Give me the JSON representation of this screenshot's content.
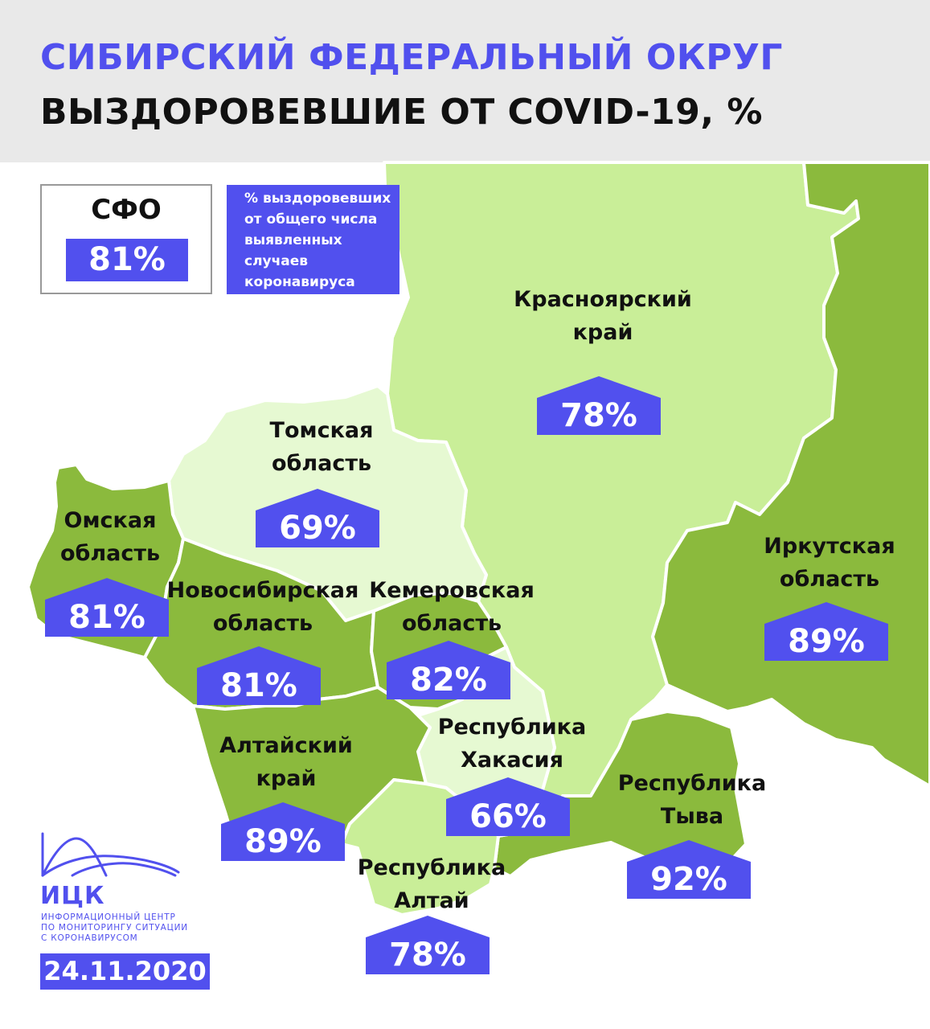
{
  "header": {
    "title": "СИБИРСКИЙ ФЕДЕРАЛЬНЫЙ ОКРУГ",
    "subtitle": "ВЫЗДОРОВЕВШИЕ ОТ COVID-19, %"
  },
  "total": {
    "label": "СФО",
    "value": "81%"
  },
  "legend": {
    "lines": [
      "% выздоровевших",
      "от общего числа",
      "выявленных",
      "случаев",
      "коронавируса"
    ]
  },
  "regions": [
    {
      "name_lines": [
        "Красноярский",
        "край"
      ],
      "value": "78%",
      "recovered_pct": 78
    },
    {
      "name_lines": [
        "Томская",
        "область"
      ],
      "value": "69%",
      "recovered_pct": 69
    },
    {
      "name_lines": [
        "Омская",
        "область"
      ],
      "value": "81%",
      "recovered_pct": 81
    },
    {
      "name_lines": [
        "Новосибирская",
        "область"
      ],
      "value": "81%",
      "recovered_pct": 81
    },
    {
      "name_lines": [
        "Кемеровская",
        "область"
      ],
      "value": "82%",
      "recovered_pct": 82
    },
    {
      "name_lines": [
        "Иркутская",
        "область"
      ],
      "value": "89%",
      "recovered_pct": 89
    },
    {
      "name_lines": [
        "Республика",
        "Хакасия"
      ],
      "value": "66%",
      "recovered_pct": 66
    },
    {
      "name_lines": [
        "Алтайский",
        "край"
      ],
      "value": "89%",
      "recovered_pct": 89
    },
    {
      "name_lines": [
        "Республика",
        "Тыва"
      ],
      "value": "92%",
      "recovered_pct": 92
    },
    {
      "name_lines": [
        "Республика",
        "Алтай"
      ],
      "value": "78%",
      "recovered_pct": 78
    }
  ],
  "colors": {
    "accent": "#5150ee",
    "dark_green": "#8bba3d",
    "light_green": "#c9ee98",
    "very_light_green": "#e6f9d2",
    "header_bg": "#e9e9e9"
  },
  "logo": {
    "name": "ИЦК",
    "desc_lines": [
      "ИНФОРМАЦИОННЫЙ ЦЕНТР",
      "ПО МОНИТОРИНГУ СИТУАЦИИ",
      "С КОРОНАВИРУСОМ"
    ]
  },
  "date": "24.11.2020"
}
